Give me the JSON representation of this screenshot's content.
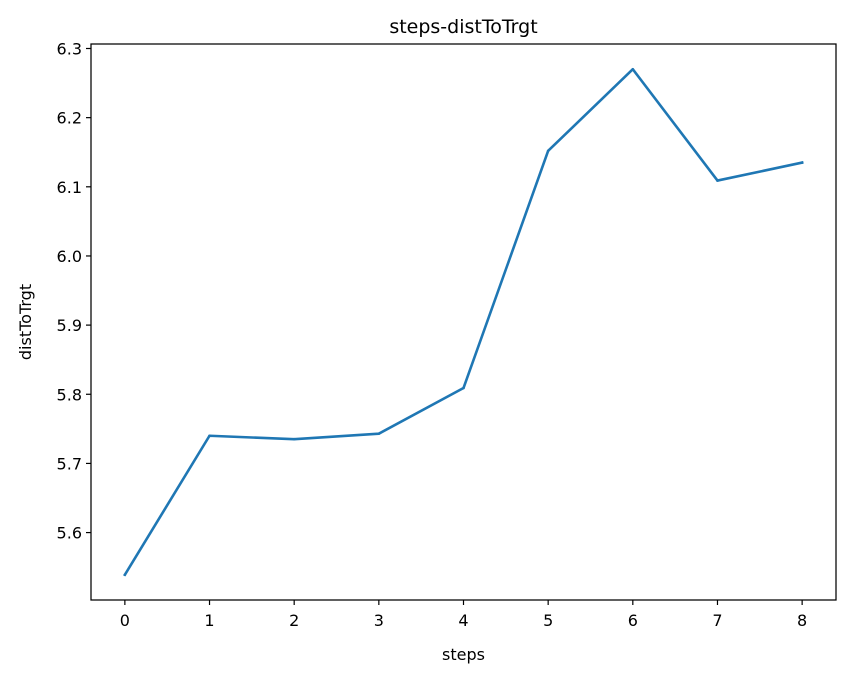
{
  "chart_data": {
    "type": "line",
    "title": "steps-distToTrgt",
    "xlabel": "steps",
    "ylabel": "distToTrgt",
    "x": [
      0,
      1,
      2,
      3,
      4,
      5,
      6,
      7,
      8
    ],
    "series": [
      {
        "values": [
          5.539,
          5.74,
          5.735,
          5.743,
          5.809,
          6.152,
          6.27,
          6.109,
          6.135
        ],
        "color": "#1f77b4"
      }
    ],
    "xticks": [
      0,
      1,
      2,
      3,
      4,
      5,
      6,
      7,
      8
    ],
    "yticks": [
      5.6,
      5.7,
      5.8,
      5.9,
      6.0,
      6.1,
      6.2,
      6.3
    ],
    "ytick_labels": [
      "5.6",
      "5.7",
      "5.8",
      "5.9",
      "6.0",
      "6.1",
      "6.2",
      "6.3"
    ],
    "xlim": [
      -0.4,
      8.4
    ],
    "ylim": [
      5.5025,
      6.3065
    ],
    "grid": false,
    "legend": false
  }
}
